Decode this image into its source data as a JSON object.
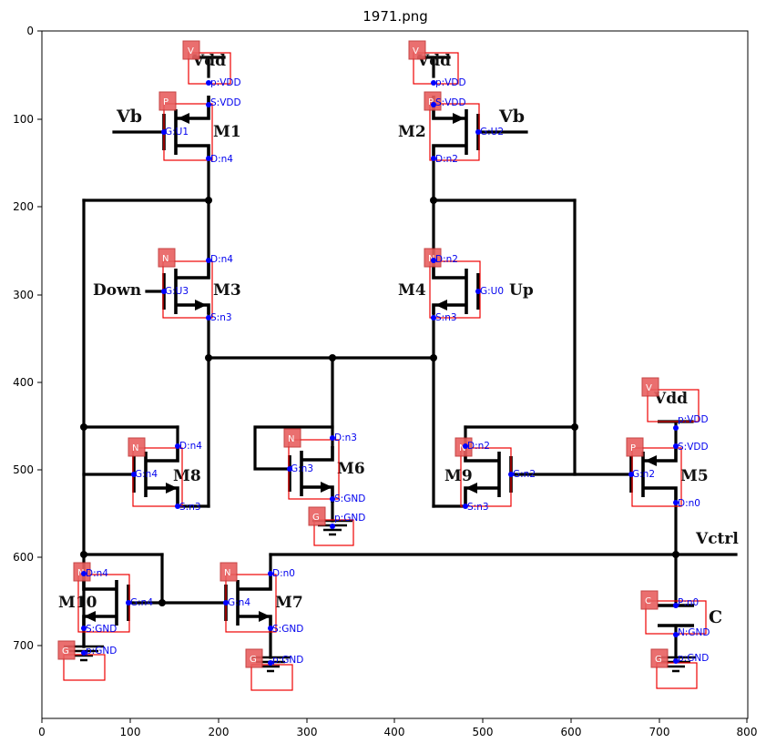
{
  "title": "1971.png",
  "axes": {
    "x_ticks": [
      "0",
      "100",
      "200",
      "300",
      "400",
      "500",
      "600",
      "700",
      "800"
    ],
    "y_ticks": [
      "0",
      "100",
      "200",
      "300",
      "400",
      "500",
      "600",
      "700"
    ]
  },
  "labels": {
    "vb_left": "Vb",
    "vb_right": "Vb",
    "vdd1": "Vdd",
    "vdd2": "Vdd",
    "vdd3": "Vdd",
    "m1": "M1",
    "m2": "M2",
    "m3": "M3",
    "m4": "M4",
    "m5": "M5",
    "m6": "M6",
    "m7": "M7",
    "m8": "M8",
    "m9": "M9",
    "m10": "M10",
    "down": "Down",
    "up": "Up",
    "vctrl": "Vctrl",
    "cap": "C"
  },
  "tags": {
    "v1": "V",
    "v2": "V",
    "v3": "V",
    "p1": "P",
    "p2": "P",
    "p5": "P",
    "n3": "N",
    "n4": "N",
    "n8": "N",
    "n6": "N",
    "n9": "N",
    "n10": "N",
    "n7": "N",
    "g6": "G",
    "g10": "G",
    "g7": "G",
    "g11": "G",
    "c": "C"
  },
  "pins": {
    "vdd1": "p:VDD",
    "vdd2": "p:VDD",
    "vdd3": "p:VDD",
    "m1s": "S:VDD",
    "m1g": "G:U1",
    "m1d": "D:n4",
    "m2s": "S:VDD",
    "m2g": "G:U2",
    "m2d": "D:n2",
    "m3d": "D:n4",
    "m3g": "G:U3",
    "m3s": "S:n3",
    "m4d": "D:n2",
    "m4g": "G:U0",
    "m4s": "S:n3",
    "m8d": "D:n4",
    "m8g": "G:n4",
    "m8s": "S:n3",
    "m6d": "D:n3",
    "m6g": "G:n3",
    "m6s": "S:GND",
    "m9d": "D:n2",
    "m9g": "G:n2",
    "m9s": "S:n3",
    "m5s": "S:VDD",
    "m5g": "G:n2",
    "m5d": "D:n0",
    "m10d": "D:n4",
    "m10g": "G:n4",
    "m10s": "S:GND",
    "m7d": "D:n0",
    "m7g": "G:n4",
    "m7s": "S:GND",
    "cp": "P:n0",
    "cn": "N:GND",
    "gnd6": "p:GND",
    "gnd10": "p:GND",
    "gnd7": "p:GND",
    "gnd11": "p:GND"
  }
}
